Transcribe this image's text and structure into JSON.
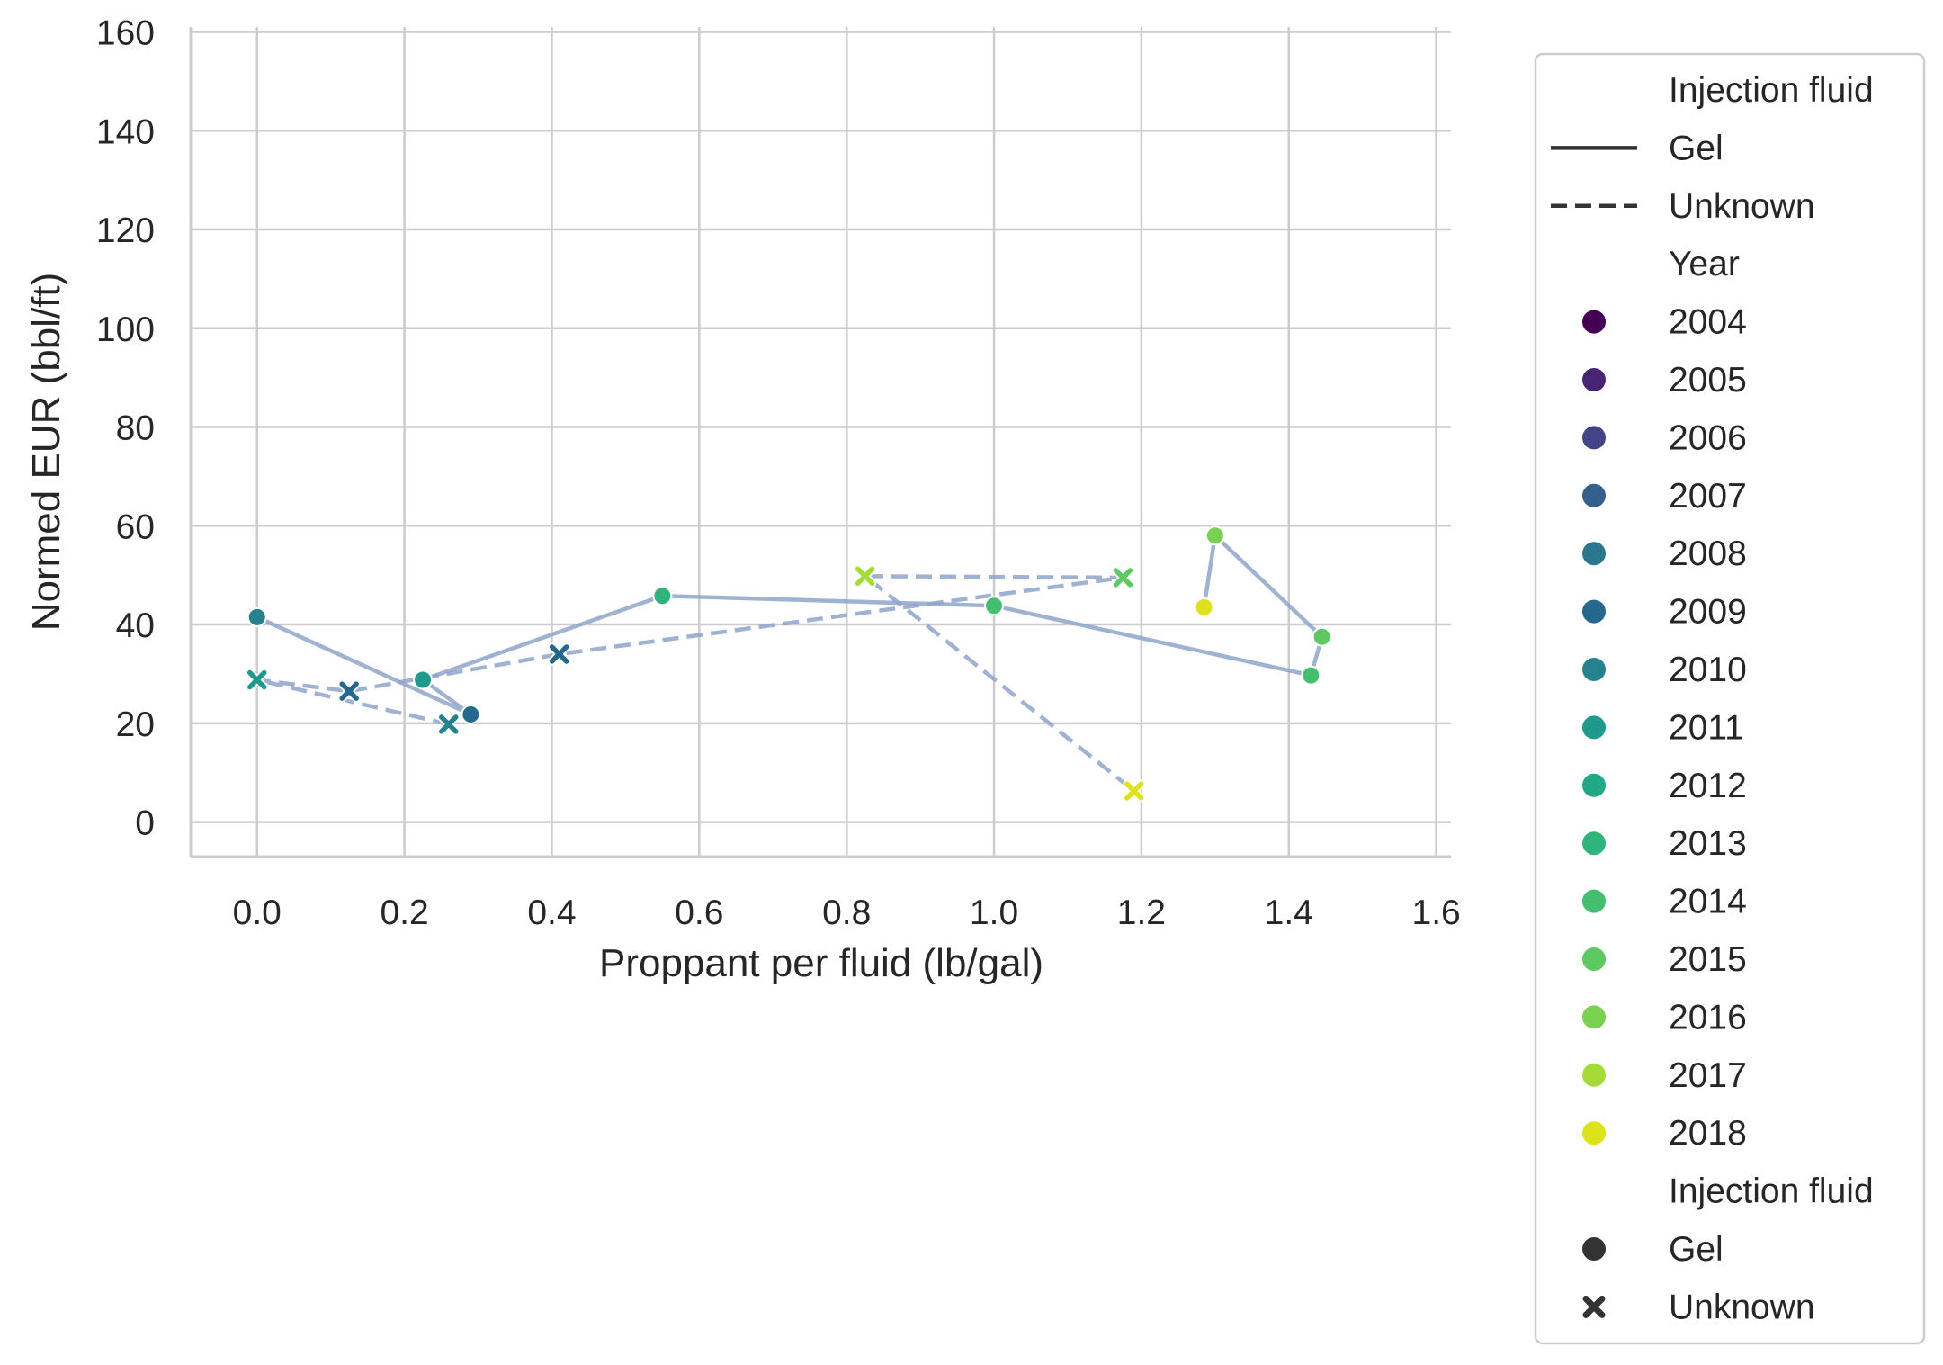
{
  "chart_data": {
    "type": "scatter",
    "xlabel": "Proppant per fluid (lb/gal)",
    "ylabel": "Normed EUR (bbl/ft)",
    "xlim": [
      -0.09,
      1.62
    ],
    "ylim": [
      -7,
      161
    ],
    "xticks": [
      "0.0",
      "0.2",
      "0.4",
      "0.6",
      "0.8",
      "1.0",
      "1.2",
      "1.4",
      "1.6"
    ],
    "xtick_values": [
      0.0,
      0.2,
      0.4,
      0.6,
      0.8,
      1.0,
      1.2,
      1.4,
      1.6
    ],
    "yticks": [
      "0",
      "20",
      "40",
      "60",
      "80",
      "100",
      "120",
      "140",
      "160"
    ],
    "ytick_values": [
      0,
      20,
      40,
      60,
      80,
      100,
      120,
      140,
      160
    ],
    "grid": true,
    "legend_position": "outside-right",
    "line_color": "#8fa5c9",
    "series": [
      {
        "name": "Gel",
        "style": "solid",
        "marker": "circle",
        "points": [
          {
            "x": 0.0,
            "y": 41.5,
            "year": 2010
          },
          {
            "x": 0.29,
            "y": 21.8,
            "year": 2009
          },
          {
            "x": 0.225,
            "y": 28.8,
            "year": 2011
          },
          {
            "x": 0.55,
            "y": 45.8,
            "year": 2013
          },
          {
            "x": 1.0,
            "y": 43.8,
            "year": 2014
          },
          {
            "x": 1.43,
            "y": 29.7,
            "year": 2014
          },
          {
            "x": 1.445,
            "y": 37.5,
            "year": 2015
          },
          {
            "x": 1.3,
            "y": 58.0,
            "year": 2016
          },
          {
            "x": 1.285,
            "y": 43.5,
            "year": 2018
          }
        ]
      },
      {
        "name": "Unknown",
        "style": "dashed",
        "marker": "x",
        "points": [
          {
            "x": 0.26,
            "y": 19.8,
            "year": 2010
          },
          {
            "x": 0.0,
            "y": 28.8,
            "year": 2011
          },
          {
            "x": 0.125,
            "y": 26.5,
            "year": 2009
          },
          {
            "x": 0.41,
            "y": 34.0,
            "year": 2009
          },
          {
            "x": 1.175,
            "y": 49.5,
            "year": 2015
          },
          {
            "x": 0.825,
            "y": 49.8,
            "year": 2017
          },
          {
            "x": 1.19,
            "y": 6.3,
            "year": 2018
          }
        ]
      }
    ],
    "year_colors": {
      "2004": "#440154",
      "2005": "#482475",
      "2006": "#414487",
      "2007": "#355f8d",
      "2008": "#2a788e",
      "2009": "#25688e",
      "2010": "#26828e",
      "2011": "#1f9a8a",
      "2012": "#22a884",
      "2013": "#2fb47c",
      "2014": "#44bf70",
      "2015": "#5ec962",
      "2016": "#7ad151",
      "2017": "#a5db36",
      "2018": "#dde318"
    },
    "legend": {
      "style_title": "Injection fluid",
      "style_entries": [
        "Gel",
        "Unknown"
      ],
      "hue_title": "Year",
      "hue_entries": [
        "2004",
        "2005",
        "2006",
        "2007",
        "2008",
        "2009",
        "2010",
        "2011",
        "2012",
        "2013",
        "2014",
        "2015",
        "2016",
        "2017",
        "2018"
      ],
      "marker_title": "Injection fluid",
      "marker_entries": [
        "Gel",
        "Unknown"
      ]
    }
  }
}
